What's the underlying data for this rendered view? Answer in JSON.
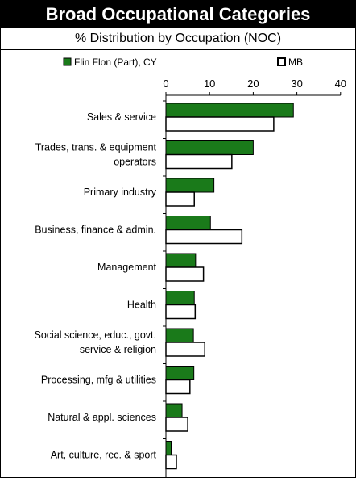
{
  "header": {
    "title": "Broad Occupational Categories",
    "subtitle": "% Distribution by Occupation (NOC)"
  },
  "colors": {
    "series1": "#1a7a1a",
    "series2": "#ffffff",
    "outline": "#000000"
  },
  "chart_data": {
    "type": "bar",
    "orientation": "horizontal",
    "title": "Broad Occupational Categories",
    "subtitle": "% Distribution by Occupation (NOC)",
    "xlim": [
      0,
      40
    ],
    "xticks": [
      0,
      10,
      20,
      30,
      40
    ],
    "legend_position": "top",
    "grid": false,
    "categories": [
      [
        "Sales & service"
      ],
      [
        "Trades, trans. & equipment",
        "operators"
      ],
      [
        "Primary industry"
      ],
      [
        "Business, finance & admin."
      ],
      [
        "Management"
      ],
      [
        "Health"
      ],
      [
        "Social science, educ., govt.",
        "service & religion"
      ],
      [
        "Processing, mfg & utilities"
      ],
      [
        "Natural & appl. sciences"
      ],
      [
        "Art, culture, rec. & sport"
      ]
    ],
    "series": [
      {
        "name": "Flin Flon (Part), CY",
        "values": [
          29.2,
          20.0,
          11.0,
          10.2,
          6.8,
          6.5,
          6.3,
          6.4,
          3.7,
          1.2
        ]
      },
      {
        "name": "MB",
        "values": [
          24.7,
          15.1,
          6.5,
          17.4,
          8.6,
          6.7,
          8.9,
          5.5,
          5.0,
          2.4
        ]
      }
    ]
  }
}
